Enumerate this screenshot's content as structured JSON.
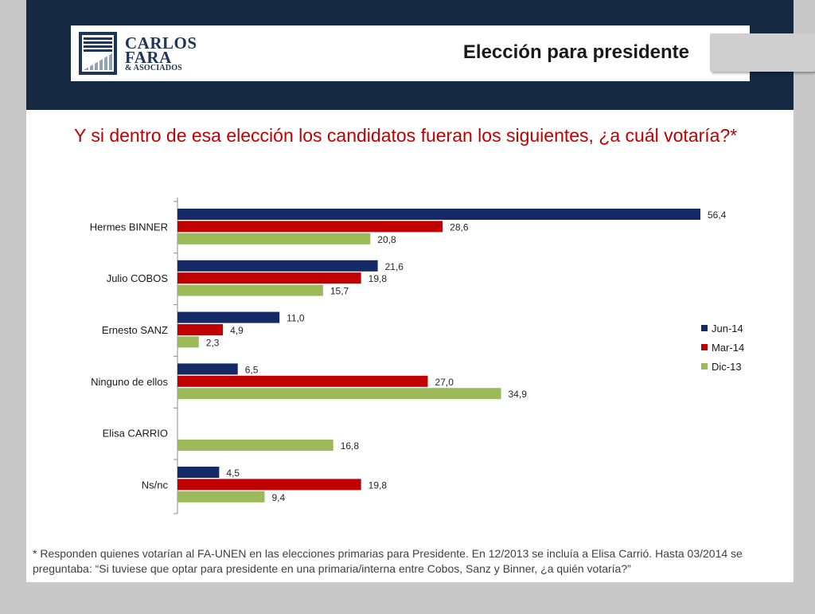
{
  "header": {
    "logo_line1": "CARLOS",
    "logo_line2": "FARA",
    "logo_line3": "& ASOCIADOS",
    "section_title": "Elección para presidente"
  },
  "question": "Y si dentro de esa elección los candidatos fueran los siguientes, ¿a cuál votaría?*",
  "footnote": "* Responden quienes votarían al FA-UNEN en las elecciones primarias para Presidente. En 12/2013 se incluía a Elisa Carrió. Hasta 03/2014 se preguntaba: “Si tuviese que optar para presidente en una primaria/interna entre Cobos, Sanz y Binner, ¿a quién votaría?”",
  "colors": {
    "header_bg": "#152943",
    "question": "#c00000",
    "jun14": "#142a66",
    "mar14": "#c00000",
    "dic13": "#9bbb59"
  },
  "chart_data": {
    "type": "bar",
    "orientation": "horizontal",
    "categories": [
      "Hermes BINNER",
      "Julio COBOS",
      "Ernesto SANZ",
      "Ninguno de ellos",
      "Elisa CARRIO",
      "Ns/nc"
    ],
    "series": [
      {
        "name": "Jun-14",
        "color": "#142a66",
        "values": [
          56.4,
          21.6,
          11.0,
          6.5,
          null,
          4.5
        ],
        "labels": [
          "56,4",
          "21,6",
          "11,0",
          "6,5",
          "",
          "4,5"
        ]
      },
      {
        "name": "Mar-14",
        "color": "#c00000",
        "values": [
          28.6,
          19.8,
          4.9,
          27.0,
          null,
          19.8
        ],
        "labels": [
          "28,6",
          "19,8",
          "4,9",
          "27,0",
          "",
          "19,8"
        ]
      },
      {
        "name": "Dic-13",
        "color": "#9bbb59",
        "values": [
          20.8,
          15.7,
          2.3,
          34.9,
          16.8,
          9.4
        ],
        "labels": [
          "20,8",
          "15,7",
          "2,3",
          "34,9",
          "16,8",
          "9,4"
        ]
      }
    ],
    "xlim": [
      0,
      60
    ],
    "grid": false,
    "legend": "right"
  }
}
